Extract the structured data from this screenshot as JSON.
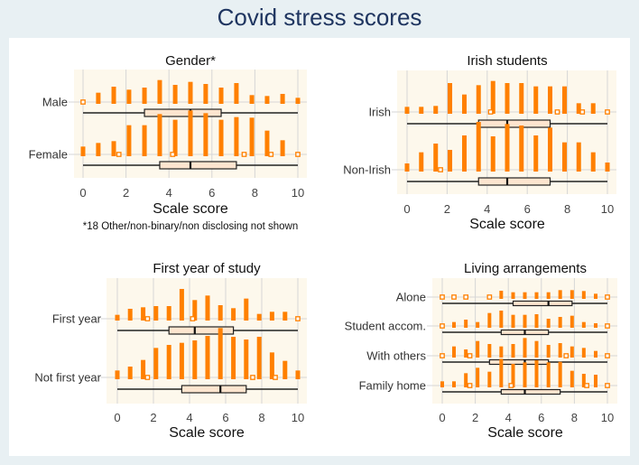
{
  "title": "Covid stress scores",
  "colors": {
    "bar": "#ff8000",
    "box_fill": "#fde5cf",
    "plot_bg": "#fdf8ec",
    "grid": "#d6d6d6",
    "title": "#1f3560"
  },
  "chart_data": [
    {
      "type": "bar",
      "title": "Gender*",
      "xlabel": "Scale score",
      "footnote": "*18 Other/non-binary/non disclosing not shown",
      "xlim": [
        0,
        10
      ],
      "xticks": [
        "0",
        "2",
        "4",
        "6",
        "8",
        "10"
      ],
      "x": [
        0,
        0.71,
        1.43,
        2.14,
        2.86,
        3.57,
        4.29,
        5,
        5.71,
        6.43,
        7.14,
        7.86,
        8.57,
        9.29,
        10
      ],
      "series": [
        {
          "name": "Male",
          "values": [
            0,
            37,
            57,
            47,
            54,
            79,
            63,
            73,
            66,
            54,
            69,
            29,
            26,
            33,
            20
          ],
          "sparse": [
            0
          ],
          "box": {
            "min": 0,
            "q1": 2.86,
            "median": 5,
            "q3": 6.43,
            "max": 10
          }
        },
        {
          "name": "Female",
          "values": [
            32,
            44,
            50,
            103,
            103,
            140,
            121,
            152,
            143,
            121,
            130,
            128,
            85,
            53,
            0
          ],
          "sparse": [
            1.67,
            4.17,
            7.5,
            8.75,
            10
          ],
          "box": {
            "min": 0,
            "q1": 3.57,
            "median": 5,
            "q3": 7.14,
            "max": 10
          }
        }
      ]
    },
    {
      "type": "bar",
      "title": "Irish students",
      "xlabel": "Scale score",
      "xlim": [
        0,
        10
      ],
      "xticks": [
        "0",
        "2",
        "4",
        "6",
        "8",
        "10"
      ],
      "x": [
        0,
        0.71,
        1.43,
        2.14,
        2.86,
        3.57,
        4.29,
        5,
        5.71,
        6.43,
        7.14,
        7.86,
        8.57,
        9.29,
        10
      ],
      "series": [
        {
          "name": "Irish",
          "values": [
            23,
            23,
            26,
            102,
            64,
            95,
            109,
            102,
            102,
            91,
            91,
            91,
            35,
            35,
            0
          ],
          "sparse": [
            4.17,
            7.5,
            8.75,
            10
          ],
          "box": {
            "min": 0,
            "q1": 3.57,
            "median": 5,
            "q3": 7.14,
            "max": 10
          }
        },
        {
          "name": "Non-Irish",
          "values": [
            27,
            64,
            93,
            72,
            120,
            165,
            117,
            158,
            153,
            120,
            146,
            97,
            97,
            64,
            30
          ],
          "sparse": [
            1.67
          ],
          "box": {
            "min": 0,
            "q1": 3.57,
            "median": 5,
            "q3": 7.14,
            "max": 10
          }
        }
      ]
    },
    {
      "type": "bar",
      "title": "First year of study",
      "xlabel": "Scale score",
      "xlim": [
        0,
        10
      ],
      "xticks": [
        "0",
        "2",
        "4",
        "6",
        "8",
        "10"
      ],
      "x": [
        0,
        0.71,
        1.43,
        2.14,
        2.86,
        3.57,
        4.29,
        5,
        5.71,
        6.43,
        7.14,
        7.86,
        8.57,
        9.29,
        10
      ],
      "series": [
        {
          "name": "First year",
          "values": [
            19,
            39,
            44,
            48,
            48,
            105,
            68,
            83,
            51,
            41,
            73,
            22,
            29,
            29,
            0
          ],
          "sparse": [
            1.67,
            4.17,
            10
          ],
          "box": {
            "min": 0,
            "q1": 2.86,
            "median": 4.29,
            "q3": 6.43,
            "max": 10
          }
        },
        {
          "name": "Not first year",
          "values": [
            29,
            42,
            64,
            104,
            114,
            121,
            129,
            144,
            170,
            141,
            132,
            141,
            89,
            61,
            29
          ],
          "sparse": [
            1.67,
            7.5,
            8.75
          ],
          "box": {
            "min": 0,
            "q1": 3.57,
            "median": 5.71,
            "q3": 7.14,
            "max": 10
          }
        }
      ]
    },
    {
      "type": "bar",
      "title": "Living arrangements",
      "xlabel": "Scale score",
      "xlim": [
        0,
        10
      ],
      "xticks": [
        "0",
        "2",
        "4",
        "6",
        "8",
        "10"
      ],
      "x": [
        0,
        0.71,
        1.43,
        2.14,
        2.86,
        3.57,
        4.29,
        5,
        5.71,
        6.43,
        7.14,
        7.86,
        8.57,
        9.29,
        10
      ],
      "series": [
        {
          "name": "Alone",
          "values": [
            0,
            0,
            0,
            0,
            0,
            27,
            22,
            22,
            22,
            22,
            29,
            29,
            26,
            17,
            0
          ],
          "sparse": [
            0,
            0.71,
            1.43,
            2.86,
            10
          ],
          "box": {
            "min": 0,
            "q1": 4.29,
            "median": 6.43,
            "q3": 7.86,
            "max": 10
          }
        },
        {
          "name": "Student accom.",
          "values": [
            0,
            19,
            27,
            19,
            49,
            57,
            43,
            43,
            45,
            30,
            36,
            40,
            19,
            15,
            0
          ],
          "sparse": [
            0,
            10
          ],
          "box": {
            "min": 0,
            "q1": 3.57,
            "median": 5,
            "q3": 6.43,
            "max": 10
          }
        },
        {
          "name": "With others",
          "values": [
            0,
            37,
            27,
            55,
            45,
            37,
            45,
            65,
            55,
            42,
            48,
            37,
            32,
            22,
            0
          ],
          "sparse": [
            0,
            1.67,
            7.5,
            10
          ],
          "box": {
            "min": 0,
            "q1": 2.86,
            "median": 5,
            "q3": 6.43,
            "max": 10
          }
        },
        {
          "name": "Family home",
          "values": [
            20,
            20,
            47,
            65,
            52,
            95,
            78,
            83,
            90,
            83,
            85,
            55,
            45,
            42,
            0
          ],
          "sparse": [
            1.67,
            4.17,
            8.75,
            10
          ],
          "box": {
            "min": 0,
            "q1": 3.57,
            "median": 5,
            "q3": 7.14,
            "max": 10
          }
        }
      ]
    }
  ]
}
